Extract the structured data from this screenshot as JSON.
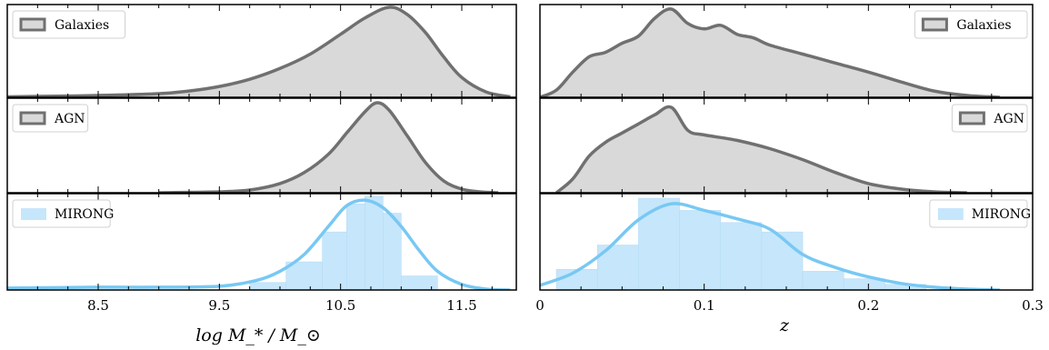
{
  "colors": {
    "galaxy_fill": "#d9d9d9",
    "galaxy_line": "#707070",
    "mirong_fill": "#c6e6fb",
    "mirong_line": "#78c8f3"
  },
  "chart_data": [
    {
      "type": "area",
      "panel": "mass-galaxies",
      "legend": "Galaxies",
      "legend_position": "top-left",
      "xlim": [
        7.75,
        11.95
      ],
      "x": [
        7.75,
        8.0,
        8.5,
        9.0,
        9.25,
        9.5,
        9.75,
        10.0,
        10.25,
        10.5,
        10.7,
        10.9,
        11.05,
        11.2,
        11.35,
        11.5,
        11.7,
        11.9
      ],
      "y": [
        0.005,
        0.01,
        0.02,
        0.04,
        0.07,
        0.12,
        0.2,
        0.32,
        0.48,
        0.7,
        0.88,
        1.0,
        0.92,
        0.72,
        0.45,
        0.22,
        0.06,
        0.005
      ]
    },
    {
      "type": "area",
      "panel": "mass-agn",
      "legend": "AGN",
      "legend_position": "top-left",
      "xlim": [
        7.75,
        11.95
      ],
      "x": [
        9.0,
        9.5,
        9.75,
        10.0,
        10.2,
        10.4,
        10.55,
        10.7,
        10.8,
        10.9,
        11.05,
        11.2,
        11.35,
        11.5,
        11.65,
        11.8
      ],
      "y": [
        0.0,
        0.01,
        0.03,
        0.1,
        0.22,
        0.42,
        0.65,
        0.88,
        0.98,
        0.9,
        0.62,
        0.33,
        0.13,
        0.04,
        0.01,
        0.0
      ]
    },
    {
      "type": "bar",
      "panel": "mass-mirong",
      "legend": "MIRONG",
      "legend_position": "top-left",
      "xlim": [
        7.75,
        11.95
      ],
      "xlabel": "log  M_* / M_⊙",
      "xticks": [
        "8.5",
        "9.5",
        "10.5",
        "11.5"
      ],
      "xtick_values": [
        8.5,
        9.5,
        10.5,
        11.5
      ],
      "bin_edges": [
        9.75,
        10.05,
        10.35,
        10.55,
        10.7,
        10.85,
        11.0,
        11.3
      ],
      "hist": [
        0.08,
        0.3,
        0.62,
        0.92,
        1.0,
        0.82,
        0.15
      ],
      "kde_x": [
        7.75,
        8.5,
        9.0,
        9.5,
        9.8,
        10.0,
        10.2,
        10.4,
        10.55,
        10.7,
        10.85,
        11.0,
        11.15,
        11.3,
        11.5,
        11.7,
        11.9
      ],
      "kde_y": [
        0.02,
        0.03,
        0.03,
        0.04,
        0.1,
        0.2,
        0.38,
        0.68,
        0.9,
        0.96,
        0.88,
        0.68,
        0.42,
        0.2,
        0.06,
        0.01,
        0.0
      ]
    },
    {
      "type": "area",
      "panel": "z-galaxies",
      "legend": "Galaxies",
      "legend_position": "top-right",
      "xlim": [
        0,
        0.3
      ],
      "x": [
        0.0,
        0.01,
        0.02,
        0.03,
        0.04,
        0.05,
        0.06,
        0.07,
        0.08,
        0.09,
        0.1,
        0.11,
        0.12,
        0.13,
        0.14,
        0.16,
        0.18,
        0.2,
        0.22,
        0.24,
        0.26,
        0.28
      ],
      "y": [
        0.0,
        0.08,
        0.28,
        0.45,
        0.5,
        0.6,
        0.68,
        0.88,
        0.98,
        0.82,
        0.76,
        0.8,
        0.7,
        0.66,
        0.58,
        0.48,
        0.38,
        0.28,
        0.17,
        0.07,
        0.02,
        0.0
      ]
    },
    {
      "type": "area",
      "panel": "z-agn",
      "legend": "AGN",
      "legend_position": "top-right",
      "xlim": [
        0,
        0.3
      ],
      "x": [
        0.01,
        0.02,
        0.03,
        0.04,
        0.05,
        0.06,
        0.07,
        0.08,
        0.09,
        0.1,
        0.12,
        0.14,
        0.16,
        0.18,
        0.2,
        0.22,
        0.24,
        0.26
      ],
      "y": [
        0.0,
        0.15,
        0.4,
        0.55,
        0.65,
        0.75,
        0.85,
        0.93,
        0.68,
        0.63,
        0.57,
        0.48,
        0.36,
        0.22,
        0.1,
        0.04,
        0.01,
        0.0
      ]
    },
    {
      "type": "bar",
      "panel": "z-mirong",
      "legend": "MIRONG",
      "legend_position": "top-right",
      "xlim": [
        0,
        0.3
      ],
      "xlabel": "z",
      "xticks": [
        "0",
        "0.1",
        "0.2",
        "0.3"
      ],
      "xtick_values": [
        0,
        0.1,
        0.2,
        0.3
      ],
      "bin_edges": [
        0.01,
        0.035,
        0.06,
        0.085,
        0.11,
        0.135,
        0.16,
        0.185,
        0.21,
        0.235
      ],
      "hist": [
        0.22,
        0.48,
        0.98,
        0.85,
        0.72,
        0.62,
        0.2,
        0.12,
        0.06
      ],
      "kde_x": [
        0.0,
        0.02,
        0.04,
        0.06,
        0.08,
        0.1,
        0.12,
        0.14,
        0.16,
        0.18,
        0.2,
        0.22,
        0.24,
        0.26,
        0.28
      ],
      "kde_y": [
        0.05,
        0.18,
        0.42,
        0.75,
        0.92,
        0.85,
        0.76,
        0.65,
        0.38,
        0.24,
        0.14,
        0.07,
        0.03,
        0.01,
        0.0
      ]
    }
  ]
}
